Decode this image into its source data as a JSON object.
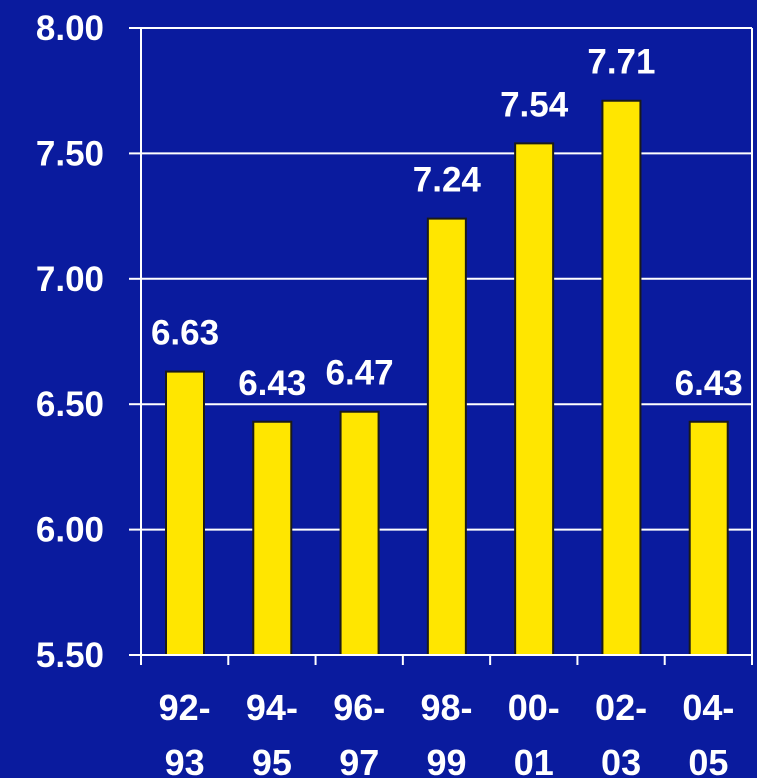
{
  "chart_data": {
    "type": "bar",
    "categories": [
      [
        "92-",
        "93"
      ],
      [
        "94-",
        "95"
      ],
      [
        "96-",
        "97"
      ],
      [
        "98-",
        "99"
      ],
      [
        "00-",
        "01"
      ],
      [
        "02-",
        "03"
      ],
      [
        "04-",
        "05"
      ]
    ],
    "values": [
      6.63,
      6.43,
      6.47,
      7.24,
      7.54,
      7.71,
      6.43
    ],
    "data_labels": [
      "6.63",
      "6.43",
      "6.47",
      "7.24",
      "7.54",
      "7.71",
      "6.43"
    ],
    "ylim": [
      5.5,
      8.0
    ],
    "yticks": [
      5.5,
      6.0,
      6.5,
      7.0,
      7.5,
      8.0
    ],
    "ytick_labels": [
      "5.50",
      "6.00",
      "6.50",
      "7.00",
      "7.50",
      "8.00"
    ],
    "grid": "horizontal",
    "legend": "none",
    "title": "",
    "xlabel": "",
    "ylabel": ""
  },
  "colors": {
    "background": "#0a1b9e",
    "bar_fill": "#ffe600",
    "bar_stroke": "#1a1a1a",
    "axis": "#ffffff",
    "text": "#ffffff"
  }
}
